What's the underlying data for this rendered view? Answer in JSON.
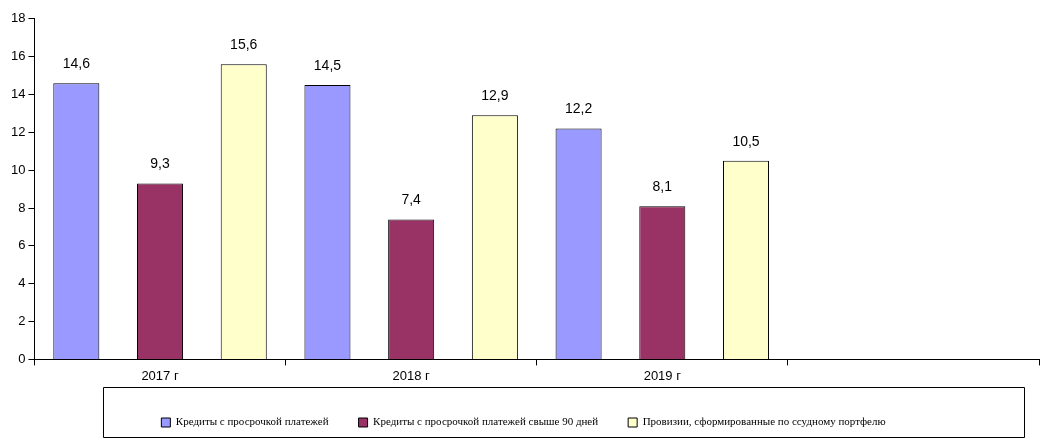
{
  "chart_data": {
    "type": "bar",
    "categories": [
      "2017 г",
      "2018 г",
      "2019 г",
      null
    ],
    "series": [
      {
        "name": "Кредиты с просрочкой платежей",
        "color": "#9999ff",
        "values": [
          14.6,
          14.5,
          12.2,
          null
        ],
        "value_labels": [
          "14,6",
          "14,5",
          "12,2",
          null
        ]
      },
      {
        "name": "Кредиты с просрочкой платежей свыше 90 дней",
        "color": "#993366",
        "values": [
          9.3,
          7.4,
          8.1,
          null
        ],
        "value_labels": [
          "9,3",
          "7,4",
          "8,1",
          null
        ]
      },
      {
        "name": "Провизии, сформированные по ссудному портфелю",
        "color": "#ffffcc",
        "values": [
          15.6,
          12.9,
          10.5,
          null
        ],
        "value_labels": [
          "15,6",
          "12,9",
          "10,5",
          null
        ]
      }
    ],
    "ylim": [
      0,
      18
    ],
    "yticks": [
      0,
      2,
      4,
      6,
      8,
      10,
      12,
      14,
      16,
      18
    ],
    "grid": false,
    "legend": "bottom"
  }
}
